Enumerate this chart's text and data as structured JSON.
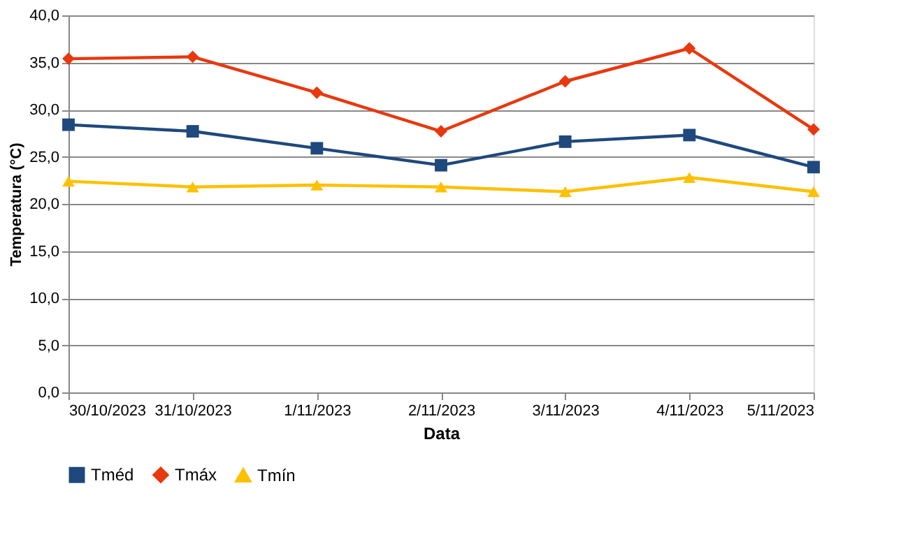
{
  "chart_data": {
    "type": "line",
    "xlabel": "Data",
    "ylabel": "Temperatura (°C)",
    "categories": [
      "30/10/2023",
      "31/10/2023",
      "1/11/2023",
      "2/11/2023",
      "3/11/2023",
      "4/11/2023",
      "5/11/2023"
    ],
    "series": [
      {
        "name": "Tméd",
        "color": "#1f497d",
        "marker": "square",
        "values": [
          28.4,
          27.7,
          25.9,
          24.1,
          26.6,
          27.3,
          23.9
        ]
      },
      {
        "name": "Tmáx",
        "color": "#e8380d",
        "marker": "diamond",
        "values": [
          35.4,
          35.6,
          31.8,
          27.7,
          33.0,
          36.5,
          27.9
        ]
      },
      {
        "name": "Tmín",
        "color": "#ffc000",
        "marker": "triangle",
        "values": [
          22.4,
          21.8,
          22.0,
          21.8,
          21.3,
          22.8,
          21.3
        ]
      }
    ],
    "ylim": [
      0,
      40
    ],
    "yticks": [
      {
        "value": 0,
        "label": "0,0"
      },
      {
        "value": 5,
        "label": "5,0"
      },
      {
        "value": 10,
        "label": "10,0"
      },
      {
        "value": 15,
        "label": "15,0"
      },
      {
        "value": 20,
        "label": "20,0"
      },
      {
        "value": 25,
        "label": "25,0"
      },
      {
        "value": 30,
        "label": "30,0"
      },
      {
        "value": 35,
        "label": "35,0"
      },
      {
        "value": 40,
        "label": "40,0"
      }
    ],
    "grid": "y",
    "legend": "bottom",
    "line_style": "solid"
  }
}
